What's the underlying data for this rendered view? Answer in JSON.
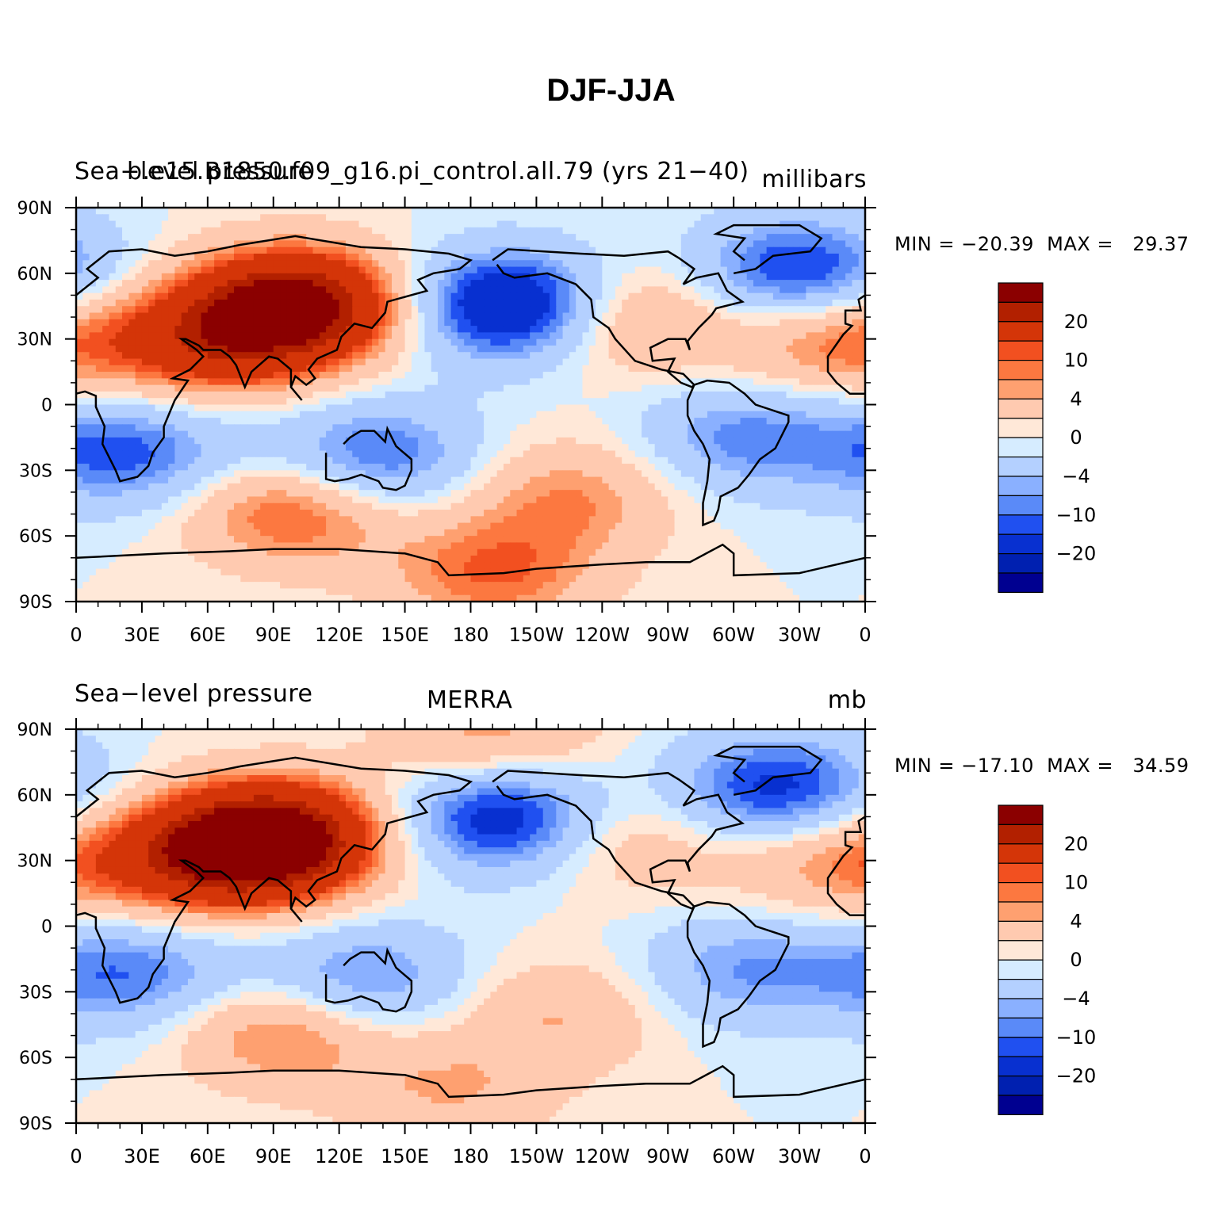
{
  "title": "DJF-JJA",
  "colorbar": {
    "colors": [
      "#8b0000",
      "#b22000",
      "#d43508",
      "#f25020",
      "#fc7840",
      "#fea070",
      "#ffcab0",
      "#ffe8d8",
      "#d6ecff",
      "#b4d0ff",
      "#8ab0ff",
      "#5a8af8",
      "#2050f0",
      "#0830d0",
      "#0020b0",
      "#000090"
    ],
    "tick_labels": [
      "20",
      "10",
      "4",
      "0",
      "−4",
      "−10",
      "−20"
    ]
  },
  "chart_data": [
    {
      "type": "heatmap",
      "title": "",
      "left_label": "Sea−level pressure",
      "center_label": "b.e15.B1850.f09_g16.pi_control.all.79 (yrs 21−40)",
      "units": "millibars",
      "min_label": "MIN = −20.39  MAX =   29.37",
      "min": -20.39,
      "max": 29.37,
      "x_ticks": [
        "0",
        "30E",
        "60E",
        "90E",
        "120E",
        "150E",
        "180",
        "150W",
        "120W",
        "90W",
        "60W",
        "30W",
        "0"
      ],
      "y_ticks": [
        "90N",
        "60N",
        "30N",
        "0",
        "30S",
        "60S",
        "90S"
      ],
      "xlim": [
        0,
        360
      ],
      "ylim": [
        -90,
        90
      ],
      "contour_levels": [
        -24,
        -20,
        -16,
        -12,
        -10,
        -8,
        -6,
        -4,
        -2,
        0,
        2,
        4,
        6,
        8,
        10,
        12,
        16,
        20,
        24
      ],
      "centers": [
        {
          "lon": 100,
          "lat": 45,
          "value": 28
        },
        {
          "lon": 60,
          "lat": 28,
          "value": 14
        },
        {
          "lon": 200,
          "lat": 45,
          "value": -20
        },
        {
          "lon": 330,
          "lat": 60,
          "value": -14
        },
        {
          "lon": 135,
          "lat": -25,
          "value": -12
        },
        {
          "lon": 25,
          "lat": -22,
          "value": -11
        },
        {
          "lon": 305,
          "lat": -15,
          "value": -9
        },
        {
          "lon": 100,
          "lat": -48,
          "value": 12
        },
        {
          "lon": 225,
          "lat": -42,
          "value": 8
        },
        {
          "lon": 248,
          "lat": 40,
          "value": 10
        },
        {
          "lon": 345,
          "lat": 30,
          "value": 10
        },
        {
          "lon": 190,
          "lat": -77,
          "value": 10
        }
      ]
    },
    {
      "type": "heatmap",
      "title": "",
      "left_label": "Sea−level pressure",
      "center_label": "MERRA",
      "units": "mb",
      "min_label": "MIN = −17.10  MAX =   34.59",
      "min": -17.1,
      "max": 34.59,
      "x_ticks": [
        "0",
        "30E",
        "60E",
        "90E",
        "120E",
        "150E",
        "180",
        "150W",
        "120W",
        "90W",
        "60W",
        "30W",
        "0"
      ],
      "y_ticks": [
        "90N",
        "60N",
        "30N",
        "0",
        "30S",
        "60S",
        "90S"
      ],
      "xlim": [
        0,
        360
      ],
      "ylim": [
        -90,
        90
      ],
      "contour_levels": [
        -24,
        -20,
        -16,
        -12,
        -10,
        -8,
        -6,
        -4,
        -2,
        0,
        2,
        4,
        6,
        8,
        10,
        12,
        16,
        20,
        24
      ],
      "centers": [
        {
          "lon": 90,
          "lat": 40,
          "value": 30
        },
        {
          "lon": 55,
          "lat": 30,
          "value": 14
        },
        {
          "lon": 195,
          "lat": 50,
          "value": -16
        },
        {
          "lon": 320,
          "lat": 62,
          "value": -14
        },
        {
          "lon": 130,
          "lat": -25,
          "value": -10
        },
        {
          "lon": 25,
          "lat": -22,
          "value": -10
        },
        {
          "lon": 305,
          "lat": -20,
          "value": -8
        },
        {
          "lon": 95,
          "lat": -48,
          "value": 10
        },
        {
          "lon": 220,
          "lat": -40,
          "value": 6
        },
        {
          "lon": 250,
          "lat": 40,
          "value": 6
        },
        {
          "lon": 345,
          "lat": 30,
          "value": 8
        },
        {
          "lon": 190,
          "lat": 85,
          "value": 8
        },
        {
          "lon": 170,
          "lat": -75,
          "value": 6
        }
      ]
    }
  ]
}
